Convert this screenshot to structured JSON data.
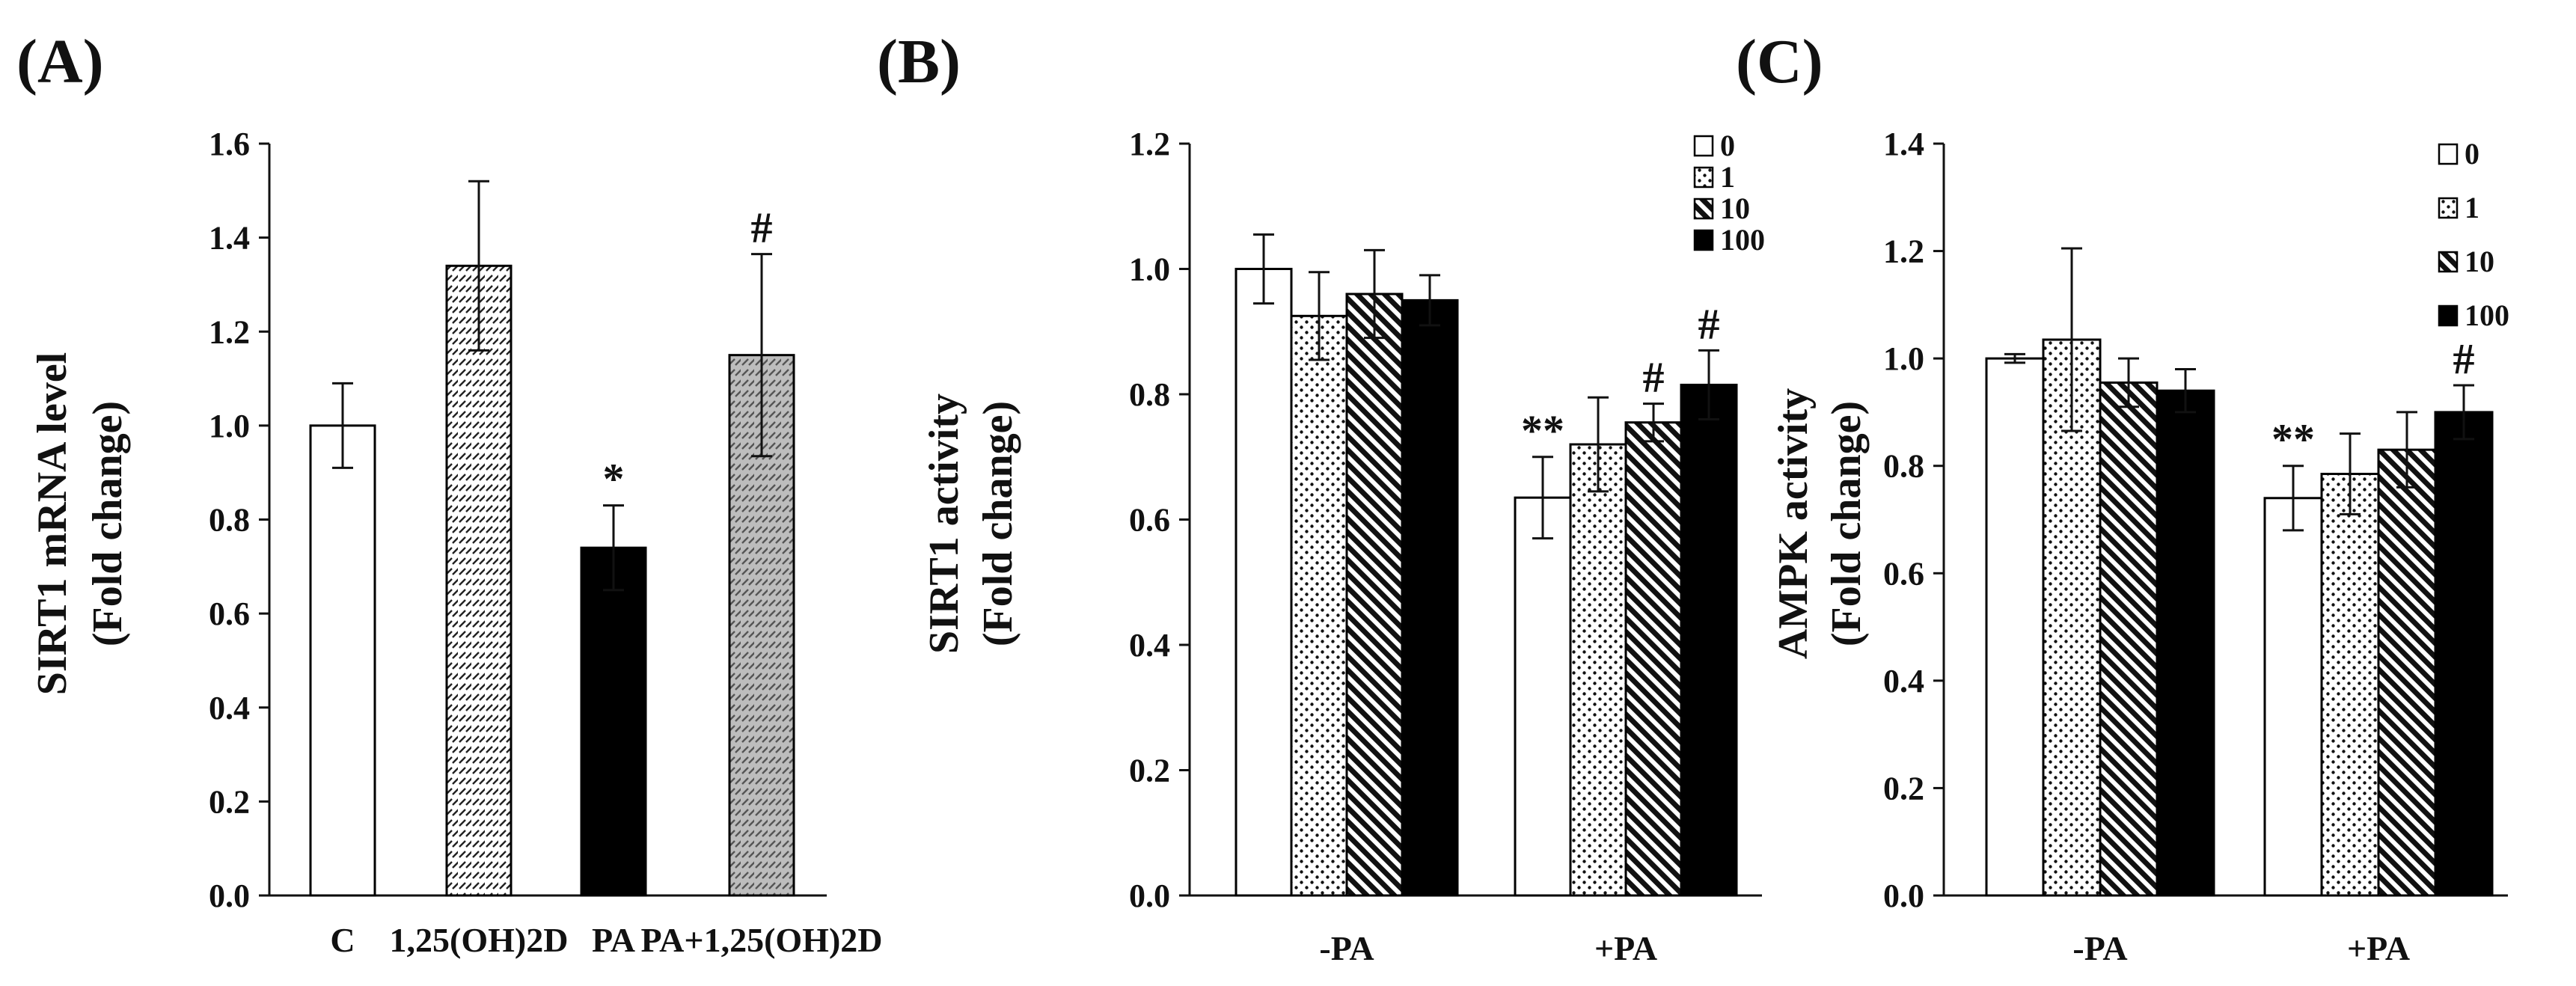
{
  "chart_data": [
    {
      "panel_label": "(A)",
      "type": "bar",
      "ylabel_lines": [
        "SIRT1 mRNA level",
        "(Fold change)"
      ],
      "ylim": [
        0,
        1.6
      ],
      "yticks": [
        "0.0",
        "0.2",
        "0.4",
        "0.6",
        "0.8",
        "1.0",
        "1.2",
        "1.4",
        "1.6"
      ],
      "categories": [
        "C",
        "1,25(OH)2D",
        "PA",
        "PA+1,25(OH)2D"
      ],
      "values": [
        1.0,
        1.34,
        0.74,
        1.15
      ],
      "errors": [
        0.09,
        0.18,
        0.09,
        0.215
      ],
      "fills": [
        "white",
        "dense-dash",
        "black",
        "gray-hatch"
      ],
      "annotations": [
        "",
        "",
        "*",
        "#"
      ]
    },
    {
      "panel_label": "(B)",
      "type": "bar",
      "ylabel_lines": [
        "SIRT1 activity",
        "(Fold change)"
      ],
      "ylim": [
        0,
        1.2
      ],
      "yticks": [
        "0.0",
        "0.2",
        "0.4",
        "0.6",
        "0.8",
        "1.0",
        "1.2"
      ],
      "categories": [
        "-PA",
        "+PA"
      ],
      "series": [
        {
          "name": "0",
          "fill": "white",
          "values": [
            1.0,
            0.635
          ],
          "errors": [
            0.055,
            0.065
          ],
          "annotations": [
            "",
            "**"
          ]
        },
        {
          "name": "1",
          "fill": "dots",
          "values": [
            0.925,
            0.72
          ],
          "errors": [
            0.07,
            0.075
          ],
          "annotations": [
            "",
            ""
          ]
        },
        {
          "name": "10",
          "fill": "diagonal",
          "values": [
            0.96,
            0.755
          ],
          "errors": [
            0.07,
            0.03
          ],
          "annotations": [
            "",
            "#"
          ]
        },
        {
          "name": "100",
          "fill": "black",
          "values": [
            0.95,
            0.815
          ],
          "errors": [
            0.04,
            0.055
          ],
          "annotations": [
            "",
            "#"
          ]
        }
      ],
      "legend": [
        "0",
        "1",
        "10",
        "100"
      ],
      "legend_position": "top-right"
    },
    {
      "panel_label": "(C)",
      "type": "bar",
      "ylabel_lines": [
        "AMPK activity",
        "(Fold change)"
      ],
      "ylim": [
        0,
        1.4
      ],
      "yticks": [
        "0.0",
        "0.2",
        "0.4",
        "0.6",
        "0.8",
        "1.0",
        "1.2",
        "1.4"
      ],
      "categories": [
        "-PA",
        "+PA"
      ],
      "series": [
        {
          "name": "0",
          "fill": "white",
          "values": [
            1.0,
            0.74
          ],
          "errors": [
            0.008,
            0.06
          ],
          "annotations": [
            "",
            "**"
          ]
        },
        {
          "name": "1",
          "fill": "dots",
          "values": [
            1.035,
            0.785
          ],
          "errors": [
            0.17,
            0.075
          ],
          "annotations": [
            "",
            ""
          ]
        },
        {
          "name": "10",
          "fill": "diagonal",
          "values": [
            0.955,
            0.83
          ],
          "errors": [
            0.045,
            0.07
          ],
          "annotations": [
            "",
            ""
          ]
        },
        {
          "name": "100",
          "fill": "black",
          "values": [
            0.94,
            0.9
          ],
          "errors": [
            0.04,
            0.05
          ],
          "annotations": [
            "",
            "#"
          ]
        }
      ],
      "legend": [
        "0",
        "1",
        "10",
        "100"
      ],
      "legend_position": "top-right"
    }
  ]
}
